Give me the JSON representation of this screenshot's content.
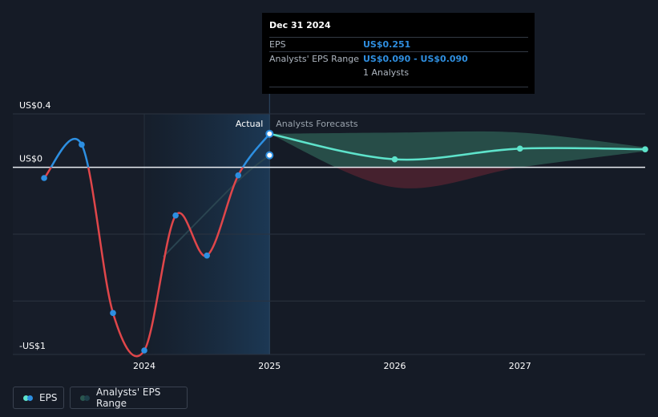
{
  "chart_data": {
    "type": "line",
    "y_ticks": [
      {
        "label": "US$0.4",
        "value": 0.4
      },
      {
        "label": "US$0",
        "value": 0
      },
      {
        "label": "-US$1",
        "value": -1.4
      }
    ],
    "x_ticks": [
      {
        "label": "2024",
        "value": 2024.0
      },
      {
        "label": "2025",
        "value": 2025.0
      },
      {
        "label": "2026",
        "value": 2026.0
      },
      {
        "label": "2027",
        "value": 2027.0
      }
    ],
    "ylim": [
      -1.4,
      0.4
    ],
    "xlim": [
      2022.95,
      2028.0
    ],
    "actual_label": "Actual",
    "forecast_label": "Analysts Forecasts",
    "series": [
      {
        "name": "EPS",
        "points": [
          {
            "x": 2023.2,
            "y": -0.08
          },
          {
            "x": 2023.5,
            "y": 0.17
          },
          {
            "x": 2023.75,
            "y": -1.09
          },
          {
            "x": 2024.0,
            "y": -1.37
          },
          {
            "x": 2024.25,
            "y": -0.36
          },
          {
            "x": 2024.5,
            "y": -0.66
          },
          {
            "x": 2024.75,
            "y": -0.06
          },
          {
            "x": 2025.0,
            "y": 0.251
          }
        ]
      },
      {
        "name": "EPS forecast",
        "points": [
          {
            "x": 2025.0,
            "y": 0.251
          },
          {
            "x": 2026.0,
            "y": 0.06
          },
          {
            "x": 2027.0,
            "y": 0.14
          },
          {
            "x": 2028.0,
            "y": 0.135
          }
        ]
      },
      {
        "name": "Analysts' EPS Range",
        "upper": [
          {
            "x": 2025.0,
            "y": 0.251
          },
          {
            "x": 2026.0,
            "y": 0.26
          },
          {
            "x": 2027.0,
            "y": 0.26
          },
          {
            "x": 2028.0,
            "y": 0.15
          }
        ],
        "lower": [
          {
            "x": 2025.0,
            "y": 0.251
          },
          {
            "x": 2026.0,
            "y": -0.15
          },
          {
            "x": 2027.0,
            "y": 0.0
          },
          {
            "x": 2028.0,
            "y": 0.12
          }
        ]
      },
      {
        "name": "Analysts' EPS Range (history)",
        "points": [
          {
            "x": 2024.15,
            "y": -0.67
          },
          {
            "x": 2024.75,
            "y": -0.1
          },
          {
            "x": 2025.0,
            "y": 0.09
          }
        ]
      }
    ],
    "colors": {
      "positive": "#2d8fe1",
      "negative": "#e0464a",
      "forecast": "#5ee3cb",
      "range_fill": "#2a564f",
      "range_fill_neg": "#4a2230",
      "grid": "#2b3340",
      "zero_line": "#e9edf2"
    }
  },
  "tooltip": {
    "date": "Dec 31 2024",
    "eps_label": "EPS",
    "eps_value": "US$0.251",
    "range_label": "Analysts' EPS Range",
    "range_value": "US$0.090 - US$0.090",
    "analysts": "1 Analysts"
  },
  "legend": {
    "eps_label": "EPS",
    "range_label": "Analysts' EPS Range"
  }
}
